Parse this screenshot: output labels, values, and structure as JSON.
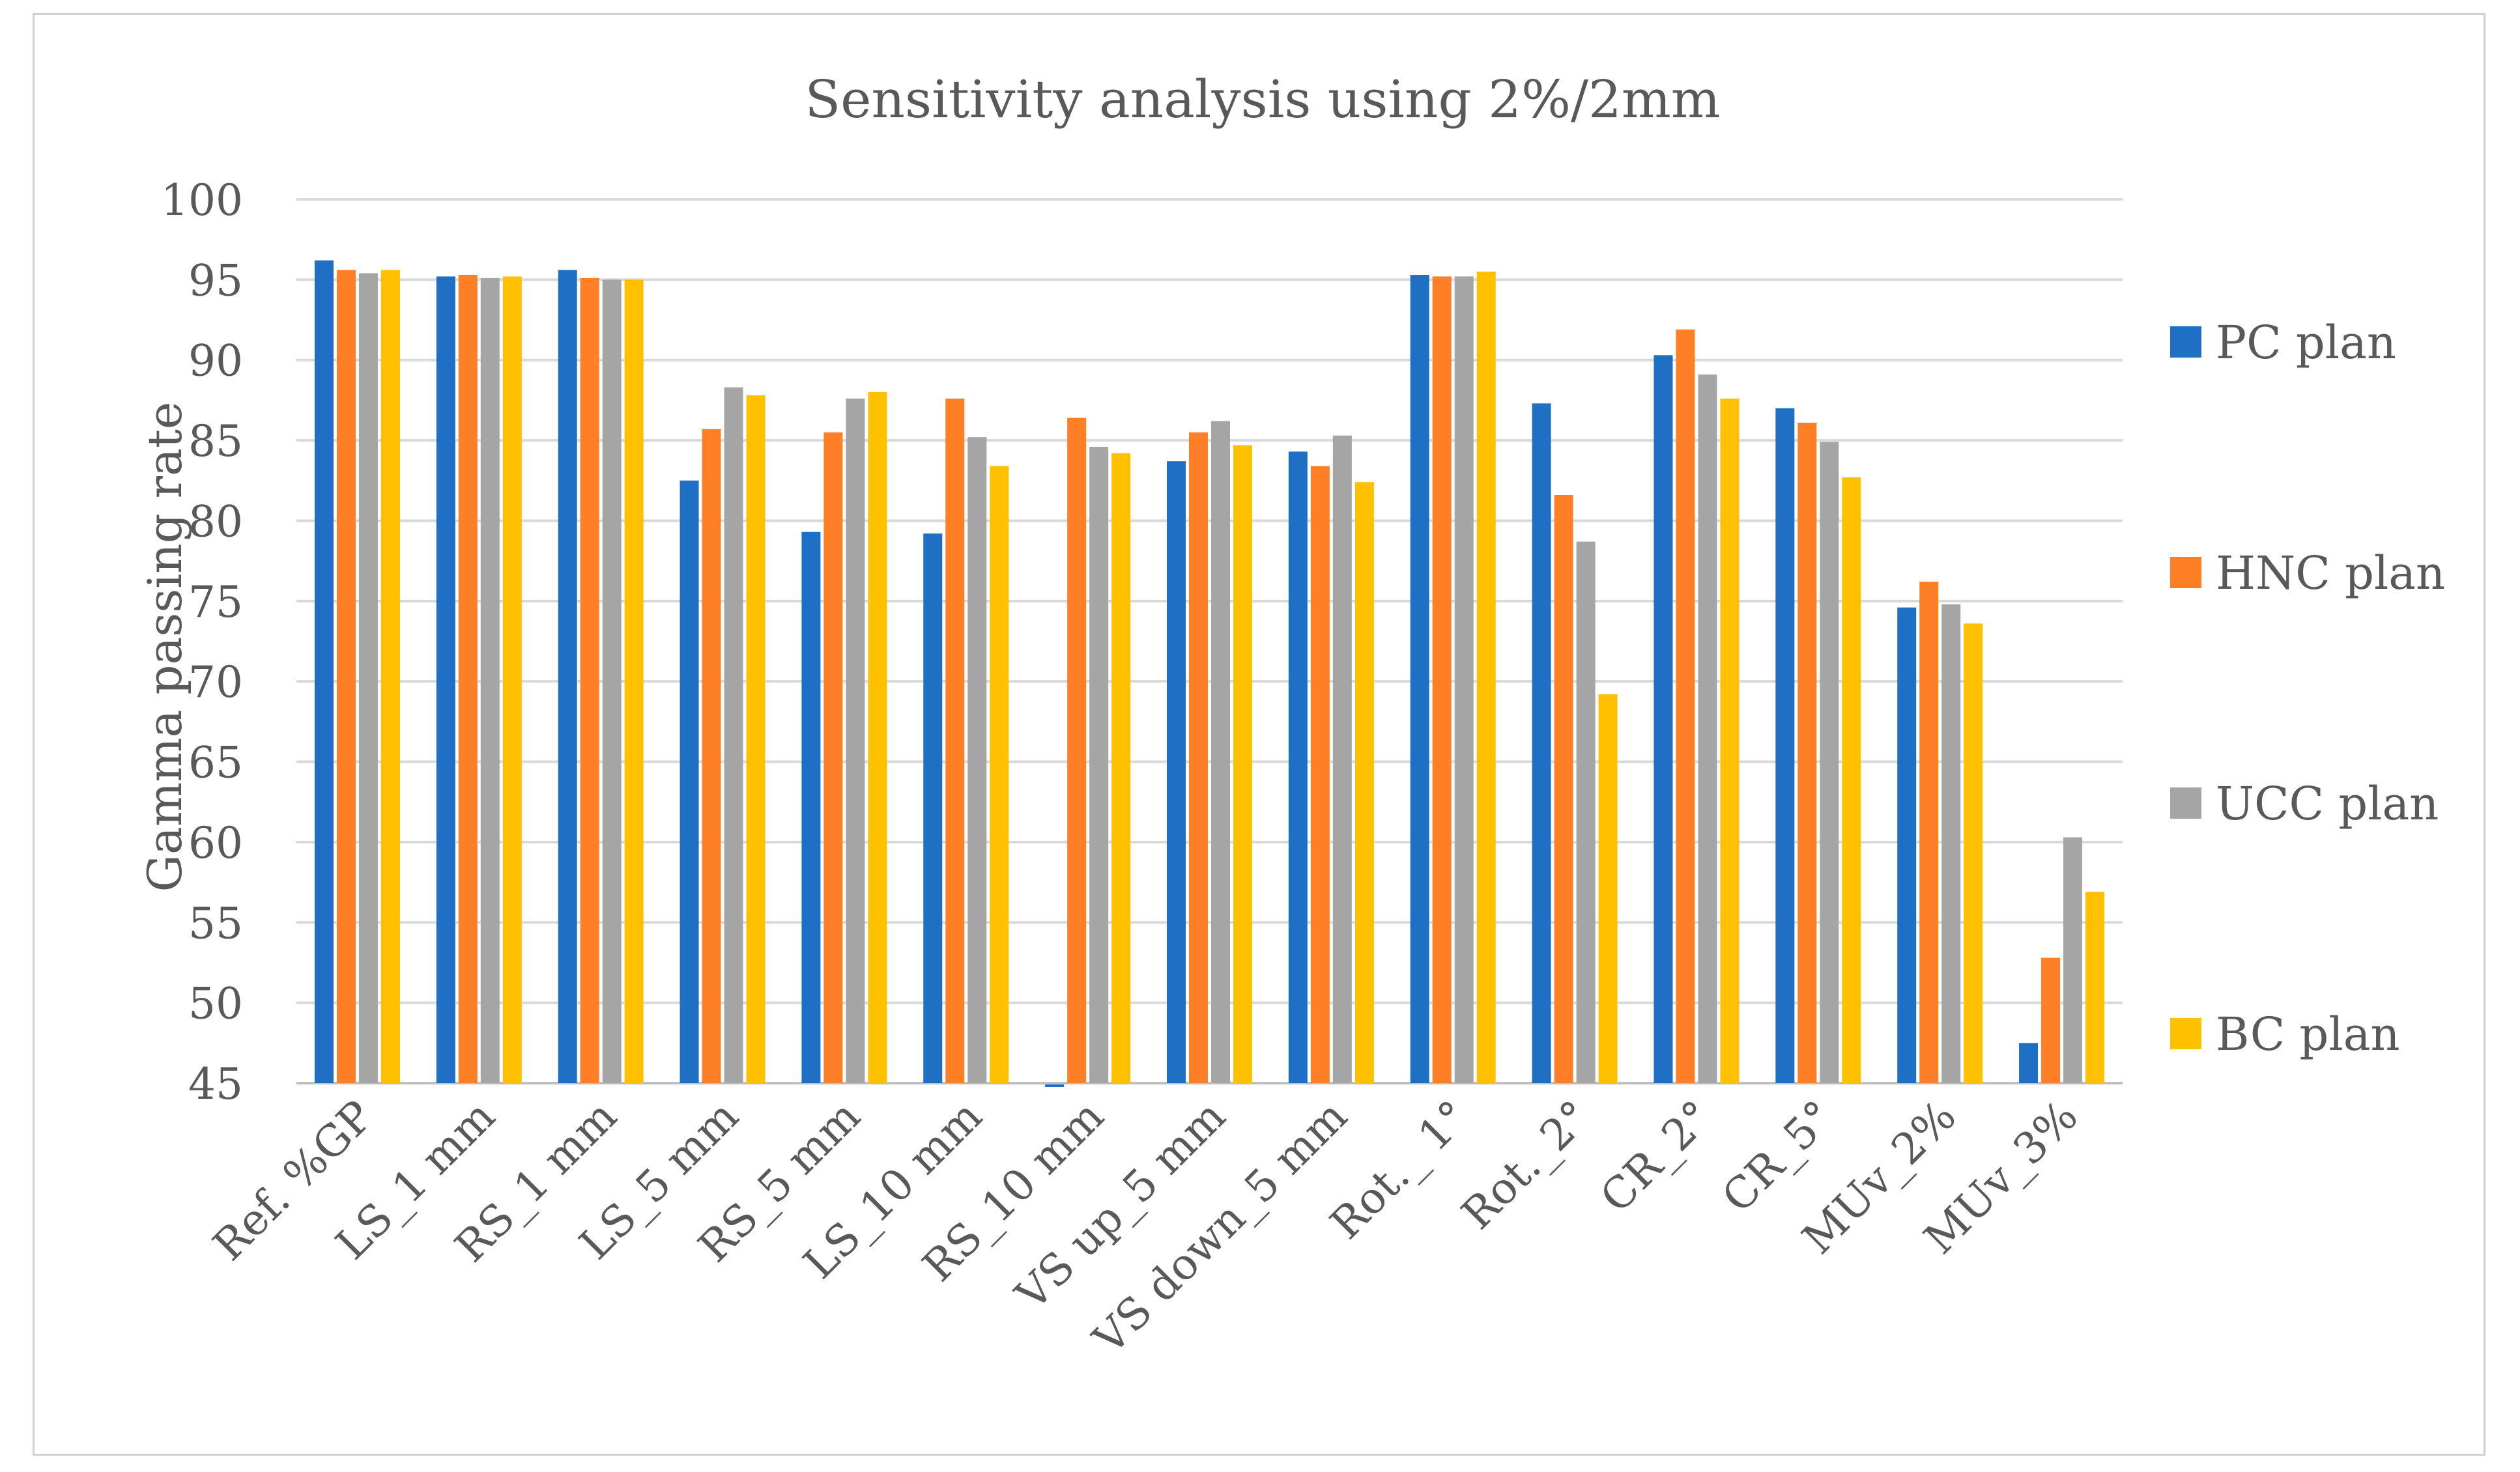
{
  "chart_data": {
    "type": "bar",
    "title": "Sensitivity analysis using 2%/2mm",
    "xlabel": "",
    "ylabel": "Gamma passing rate",
    "ylim": [
      45,
      100
    ],
    "ytick_step": 5,
    "grid": true,
    "legend_position": "right",
    "categories": [
      "Ref. %GP",
      "LS_1 mm",
      "RS_1 mm",
      "LS_5 mm",
      "RS_5 mm",
      "LS_10 mm",
      "RS_10 mm",
      "VS up_5 mm",
      "VS down_5 mm",
      "Rot._ 1°",
      "Rot._2°",
      "CR_2°",
      "CR_5°",
      "MUv_2%",
      "MUv_3%"
    ],
    "series": [
      {
        "name": "PC plan",
        "color": "#1F6FC5",
        "values": [
          96.2,
          95.2,
          95.6,
          82.5,
          79.3,
          79.2,
          44.8,
          83.7,
          84.3,
          95.3,
          87.3,
          90.3,
          87.0,
          74.6,
          47.5
        ]
      },
      {
        "name": "HNC plan",
        "color": "#FF7F27",
        "values": [
          95.6,
          95.3,
          95.1,
          85.7,
          85.5,
          87.6,
          86.4,
          85.5,
          83.4,
          95.2,
          81.6,
          91.9,
          86.1,
          76.2,
          52.8
        ]
      },
      {
        "name": "UCC plan",
        "color": "#A5A5A5",
        "values": [
          95.4,
          95.1,
          95.0,
          88.3,
          87.6,
          85.2,
          84.6,
          86.2,
          85.3,
          95.2,
          78.7,
          89.1,
          84.9,
          74.8,
          60.3
        ]
      },
      {
        "name": "BC plan",
        "color": "#FFC000",
        "values": [
          95.6,
          95.2,
          95.0,
          87.8,
          88.0,
          83.4,
          84.2,
          84.7,
          82.4,
          95.5,
          69.2,
          87.6,
          82.7,
          73.6,
          56.9
        ]
      }
    ]
  }
}
